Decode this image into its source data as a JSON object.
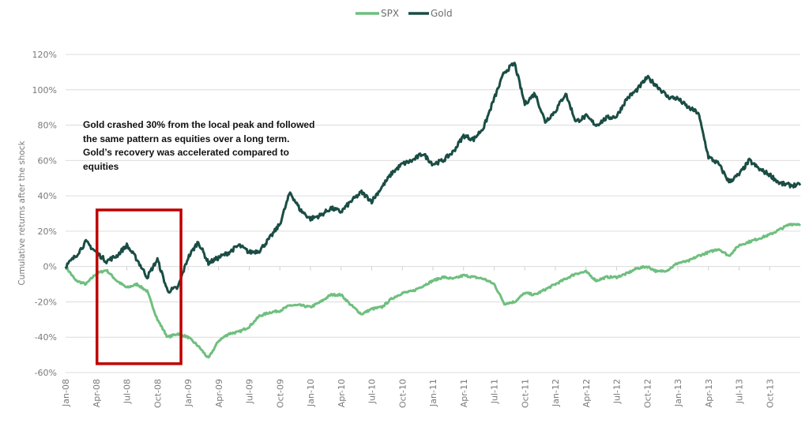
{
  "chart_data": {
    "type": "line",
    "title": "",
    "xlabel": "",
    "ylabel": "Cumulative returns after the shock",
    "ylim": [
      -0.6,
      1.2
    ],
    "yticks": [
      1.2,
      1.0,
      0.8,
      0.6,
      0.4,
      0.2,
      0.0,
      -0.2,
      -0.4,
      -0.6
    ],
    "ytick_labels": [
      "120%",
      "100%",
      "80%",
      "60%",
      "40%",
      "20%",
      "0%",
      "-20%",
      "-40%",
      "-60%"
    ],
    "xtick_labels": [
      "Jan-08",
      "Apr-08",
      "Jul-08",
      "Oct-08",
      "Jan-09",
      "Apr-09",
      "Jul-09",
      "Oct-09",
      "Jan-10",
      "Apr-10",
      "Jul-10",
      "Oct-10",
      "Jan-11",
      "Apr-11",
      "Jul-11",
      "Oct-11",
      "Jan-12",
      "Apr-12",
      "Jul-12",
      "Oct-12",
      "Jan-13",
      "Apr-13",
      "Jul-13",
      "Oct-13"
    ],
    "grid": true,
    "legend_position": "top-center",
    "x_months": [
      "2008-01",
      "2008-02",
      "2008-03",
      "2008-04",
      "2008-05",
      "2008-06",
      "2008-07",
      "2008-08",
      "2008-09",
      "2008-10",
      "2008-11",
      "2008-12",
      "2009-01",
      "2009-02",
      "2009-03",
      "2009-04",
      "2009-05",
      "2009-06",
      "2009-07",
      "2009-08",
      "2009-09",
      "2009-10",
      "2009-11",
      "2009-12",
      "2010-01",
      "2010-02",
      "2010-03",
      "2010-04",
      "2010-05",
      "2010-06",
      "2010-07",
      "2010-08",
      "2010-09",
      "2010-10",
      "2010-11",
      "2010-12",
      "2011-01",
      "2011-02",
      "2011-03",
      "2011-04",
      "2011-05",
      "2011-06",
      "2011-07",
      "2011-08",
      "2011-09",
      "2011-10",
      "2011-11",
      "2011-12",
      "2012-01",
      "2012-02",
      "2012-03",
      "2012-04",
      "2012-05",
      "2012-06",
      "2012-07",
      "2012-08",
      "2012-09",
      "2012-10",
      "2012-11",
      "2012-12",
      "2013-01",
      "2013-02",
      "2013-03",
      "2013-04",
      "2013-05",
      "2013-06",
      "2013-07",
      "2013-08",
      "2013-09",
      "2013-10",
      "2013-11",
      "2013-12"
    ],
    "series": [
      {
        "name": "SPX",
        "color": "#6fbf7e",
        "values": [
          0.0,
          -0.08,
          -0.1,
          -0.04,
          -0.02,
          -0.08,
          -0.12,
          -0.1,
          -0.14,
          -0.3,
          -0.4,
          -0.38,
          -0.4,
          -0.45,
          -0.52,
          -0.42,
          -0.38,
          -0.37,
          -0.34,
          -0.28,
          -0.26,
          -0.25,
          -0.22,
          -0.22,
          -0.23,
          -0.2,
          -0.16,
          -0.16,
          -0.22,
          -0.27,
          -0.24,
          -0.23,
          -0.18,
          -0.15,
          -0.14,
          -0.11,
          -0.08,
          -0.06,
          -0.07,
          -0.05,
          -0.06,
          -0.07,
          -0.1,
          -0.21,
          -0.2,
          -0.15,
          -0.16,
          -0.13,
          -0.1,
          -0.07,
          -0.04,
          -0.03,
          -0.08,
          -0.06,
          -0.06,
          -0.04,
          -0.01,
          0.0,
          -0.03,
          -0.02,
          0.02,
          0.03,
          0.06,
          0.08,
          0.1,
          0.06,
          0.12,
          0.14,
          0.16,
          0.18,
          0.21,
          0.24
        ]
      },
      {
        "name": "Gold",
        "color": "#1a4d44",
        "values": [
          0.0,
          0.06,
          0.14,
          0.08,
          0.03,
          0.06,
          0.12,
          0.04,
          -0.06,
          0.04,
          -0.14,
          -0.12,
          0.05,
          0.14,
          0.02,
          0.05,
          0.08,
          0.12,
          0.08,
          0.09,
          0.16,
          0.24,
          0.42,
          0.32,
          0.27,
          0.29,
          0.33,
          0.31,
          0.37,
          0.42,
          0.37,
          0.45,
          0.53,
          0.58,
          0.6,
          0.64,
          0.58,
          0.6,
          0.65,
          0.74,
          0.72,
          0.79,
          0.95,
          1.1,
          1.15,
          0.92,
          0.98,
          0.82,
          0.88,
          0.98,
          0.82,
          0.85,
          0.8,
          0.84,
          0.85,
          0.95,
          1.0,
          1.07,
          1.02,
          0.96,
          0.95,
          0.9,
          0.87,
          0.62,
          0.58,
          0.48,
          0.52,
          0.6,
          0.55,
          0.52,
          0.47,
          0.46
        ]
      }
    ],
    "highlight_box": {
      "x_start": "2008-04",
      "x_end": "2008-12",
      "y_range": [
        -0.55,
        0.32
      ],
      "color": "#c00000"
    },
    "annotation": "Gold crashed 30% from the local peak and followed the same pattern as equities over a long term. Gold’s recovery was accelerated compared to equities"
  },
  "legend": {
    "items": [
      {
        "label": "SPX",
        "color": "#6fbf7e"
      },
      {
        "label": "Gold",
        "color": "#1a4d44"
      }
    ]
  }
}
